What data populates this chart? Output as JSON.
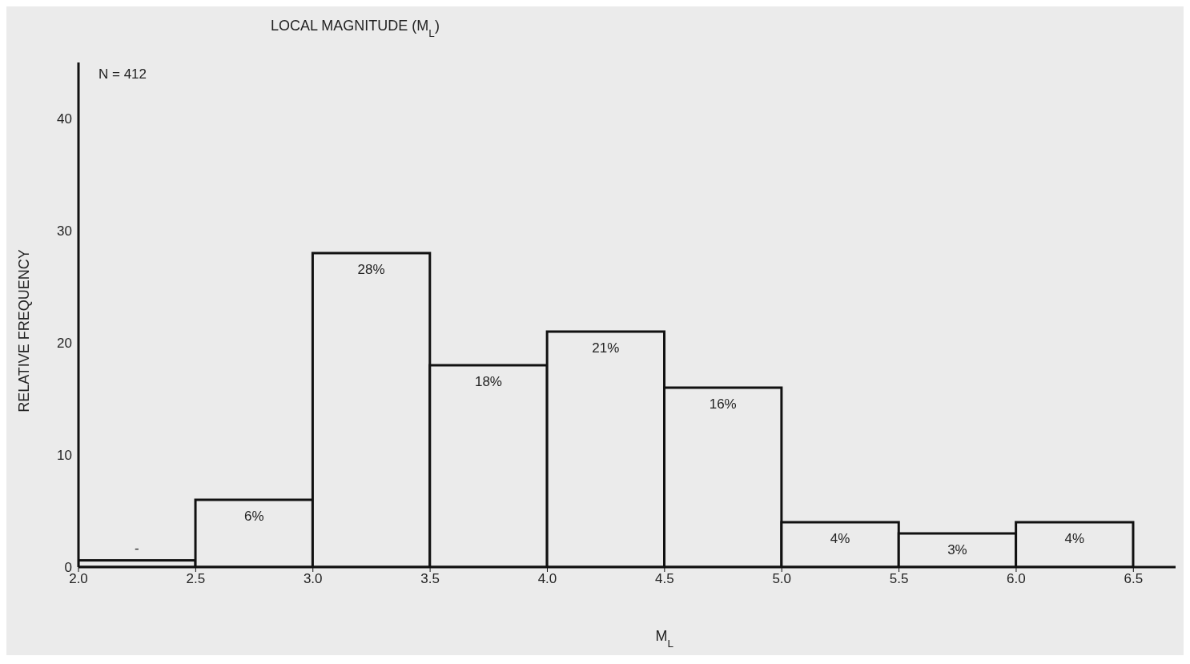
{
  "chart_data": {
    "type": "histogram",
    "title": "LOCAL MAGNITUDE (M$_{L}$)",
    "xlabel": "M$_{L}$",
    "ylabel": "RELATIVE FREQUENCY",
    "annotations": [
      "N = 412"
    ],
    "bins": [
      2.0,
      2.5,
      3.0,
      3.5,
      4.0,
      4.5,
      5.0,
      5.5,
      6.0,
      6.5
    ],
    "values": [
      0.6,
      6,
      28,
      18,
      21,
      16,
      4,
      3,
      4
    ],
    "value_labels": [
      "-",
      "6%",
      "28%",
      "18%",
      "21%",
      "16%",
      "4%",
      "3%",
      "4%"
    ],
    "color": "#ebebeb",
    "xlim": [
      2.0,
      6.68
    ],
    "xticks": [
      {
        "value": 2.0,
        "label": "2.0"
      },
      {
        "value": 2.5,
        "label": "2.5"
      },
      {
        "value": 3.0,
        "label": "3.0"
      },
      {
        "value": 3.5,
        "label": "3.5"
      },
      {
        "value": 4.0,
        "label": "4.0"
      },
      {
        "value": 4.5,
        "label": "4.5"
      },
      {
        "value": 5.0,
        "label": "5.0"
      },
      {
        "value": 5.5,
        "label": "5.5"
      },
      {
        "value": 6.0,
        "label": "6.0"
      },
      {
        "value": 6.5,
        "label": "6.5"
      }
    ],
    "ylim": [
      0,
      45
    ],
    "yticks": [
      0,
      10,
      20,
      30,
      40
    ],
    "grid": false,
    "legend": false
  }
}
